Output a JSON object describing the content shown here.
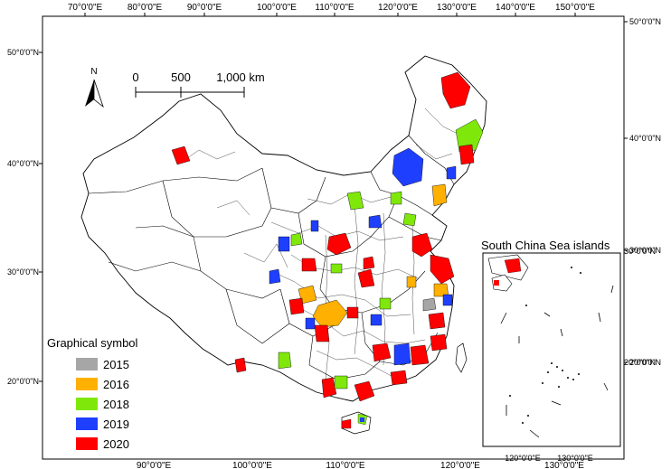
{
  "map": {
    "top_lon_labels": [
      "70°0'0\"E",
      "80°0'0\"E",
      "90°0'0\"E",
      "100°0'0\"E",
      "110°0'0\"E",
      "120°0'0\"E",
      "130°0'0\"E",
      "140°0'0\"E",
      "150°0'0\"E"
    ],
    "bottom_lon_labels": [
      "90°0'0\"E",
      "100°0'0\"E",
      "110°0'0\"E",
      "120°0'0\"E",
      "130°0'0\"E"
    ],
    "left_lat_labels": [
      "50°0'0\"N",
      "40°0'0\"N",
      "30°0'0\"N",
      "20°0'0\"N"
    ],
    "right_lat_labels": [
      "50°0'0\"N",
      "40°0'0\"N",
      "30°0'0\"N",
      "20°0'0\"N"
    ]
  },
  "north_arrow": {
    "label": "N"
  },
  "scale_bar": {
    "labels": [
      "0",
      "500",
      "1,000 km"
    ]
  },
  "inset": {
    "title": "South China Sea islands",
    "right_lat_labels": [
      "30°0'0\"N",
      "20°0'0\"N"
    ],
    "bottom_lon_labels": [
      "120°0'0\"E",
      "130°0'0\"E"
    ]
  },
  "legend": {
    "title": "Graphical symbol",
    "items": [
      {
        "label": "2015",
        "color": "#a6a6a6"
      },
      {
        "label": "2016",
        "color": "#ffb000"
      },
      {
        "label": "2018",
        "color": "#7fe80a"
      },
      {
        "label": "2019",
        "color": "#1f3fff"
      },
      {
        "label": "2020",
        "color": "#ff0000"
      }
    ]
  }
}
